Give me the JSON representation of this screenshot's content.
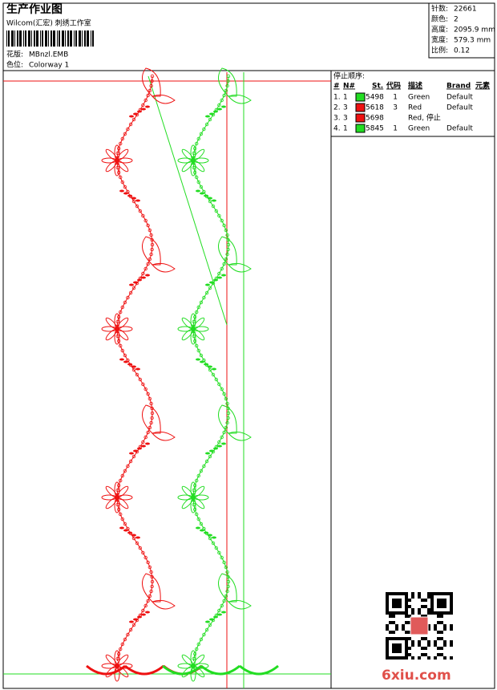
{
  "header": {
    "title": "生产作业图",
    "company": "Wilcom(汇宏) 刺绣工作室",
    "design_label": "花版:",
    "design": "MBnzl.EMB",
    "colorway_label": "色位:",
    "colorway": "Colorway 1"
  },
  "info": [
    {
      "label": "针数:",
      "value": "22661"
    },
    {
      "label": "颜色:",
      "value": "2"
    },
    {
      "label": "高度:",
      "value": "2095.9 mm"
    },
    {
      "label": "宽度:",
      "value": "579.3 mm"
    },
    {
      "label": "比例:",
      "value": "0.12"
    }
  ],
  "table": {
    "title": "停止顺序:",
    "columns": [
      "#",
      "N#",
      "St.",
      "代码",
      "描述",
      "Brand",
      "元素"
    ],
    "rows": [
      {
        "index": "1.",
        "n": "1",
        "color": "#22dd22",
        "st": "5498",
        "code": "1",
        "desc": "Green",
        "brand": "Default"
      },
      {
        "index": "2.",
        "n": "3",
        "color": "#ee1111",
        "st": "5618",
        "code": "3",
        "desc": "Red",
        "brand": "Default"
      },
      {
        "index": "3.",
        "n": "3",
        "color": "#ee1111",
        "st": "5698",
        "desc": "Red, 停止"
      },
      {
        "index": "4.",
        "n": "1",
        "color": "#22dd22",
        "st": "5845",
        "code": "1",
        "desc": "Green",
        "brand": "Default"
      }
    ]
  },
  "watermark": "6xiu.com"
}
